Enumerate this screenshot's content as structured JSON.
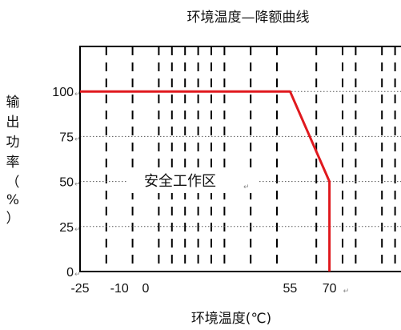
{
  "chart_data": {
    "type": "line",
    "title": "环境温度—降额曲线",
    "xlabel": "环境温度(℃)",
    "ylabel_chars": [
      "输",
      "出",
      "功",
      "率",
      "（",
      "%",
      "）"
    ],
    "x_ticks": [
      "-25",
      "-10",
      "0",
      "55",
      "70"
    ],
    "y_ticks": [
      "100",
      "75",
      "50",
      "25",
      "0"
    ],
    "xlim": [
      -25,
      100
    ],
    "ylim": [
      0,
      125
    ],
    "series": [
      {
        "x": [
          -25,
          55,
          70,
          70
        ],
        "y": [
          100,
          100,
          50,
          0
        ],
        "color": "#e0191e"
      }
    ],
    "annotation": "安全工作区",
    "grid": true
  }
}
